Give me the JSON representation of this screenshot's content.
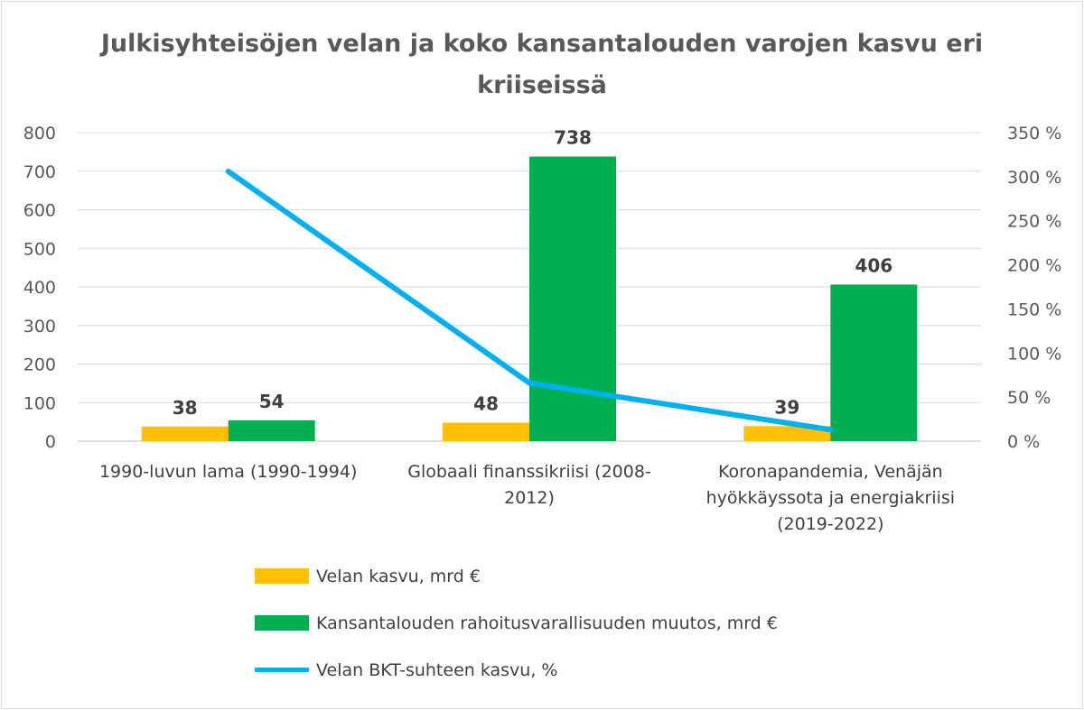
{
  "title": "Julkisyhteisöjen velan ja koko kansantalouden varojen kasvu eri kriiseissä",
  "chart_data": {
    "type": "bar",
    "categories": [
      "1990-luvun lama (1990-1994)",
      "Globaali finanssikriisi (2008-2012)",
      "Koronapandemia, Venäjän hyökkäyssota ja energiakriisi (2019-2022)"
    ],
    "category_lines": [
      [
        "1990-luvun lama (1990-1994)"
      ],
      [
        "Globaali finanssikriisi (2008-",
        "2012)"
      ],
      [
        "Koronapandemia, Venäjän",
        "hyökkäyssota ja energiakriisi",
        "(2019-2022)"
      ]
    ],
    "series": [
      {
        "name": "Velan kasvu, mrd €",
        "type": "bar",
        "axis": "left",
        "color": "#FFC000",
        "values": [
          38,
          48,
          39
        ],
        "labels": [
          "38",
          "48",
          "39"
        ]
      },
      {
        "name": "Kansantalouden rahoitusvarallisuuden muutos, mrd €",
        "type": "bar",
        "axis": "left",
        "color": "#00B050",
        "values": [
          54,
          738,
          406
        ],
        "labels": [
          "54",
          "738",
          "406"
        ]
      },
      {
        "name": "Velan BKT-suhteen kasvu, %",
        "type": "line",
        "axis": "right",
        "color": "#00B0F0",
        "values": [
          306,
          66,
          13
        ]
      }
    ],
    "y_left": {
      "lim": [
        0,
        800
      ],
      "ticks": [
        "0",
        "100",
        "200",
        "300",
        "400",
        "500",
        "600",
        "700",
        "800"
      ]
    },
    "y_right": {
      "lim": [
        0,
        350
      ],
      "ticks": [
        "0 %",
        "50 %",
        "100 %",
        "150 %",
        "200 %",
        "250 %",
        "300 %",
        "350 %"
      ]
    },
    "grid": true,
    "legend_position": "bottom"
  }
}
